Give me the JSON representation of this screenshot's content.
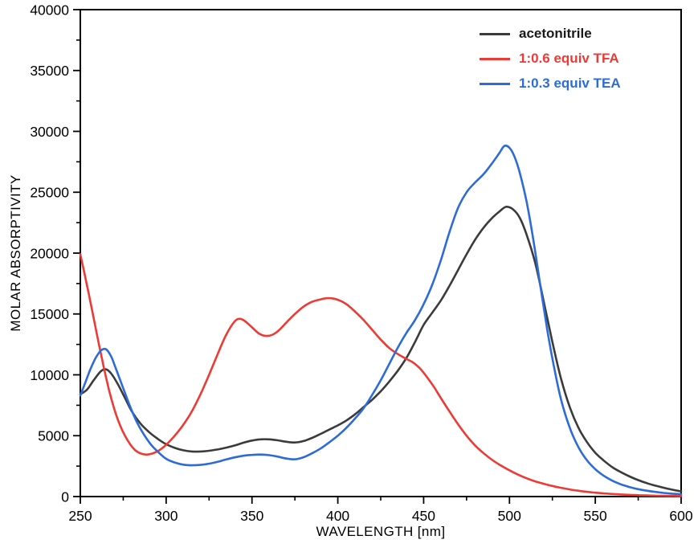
{
  "figure": {
    "background": "#ffffff",
    "frame_color": "#000000",
    "tick_color": "#000000",
    "text_color": "#000000"
  },
  "chart_data": {
    "type": "line",
    "title": "",
    "xlabel": "WAVELENGTH [nm]",
    "ylabel": "MOLAR ABSORPTIVITY",
    "xlim": [
      250,
      600
    ],
    "ylim": [
      0,
      40000
    ],
    "xticks": [
      250,
      300,
      350,
      400,
      450,
      500,
      550,
      600
    ],
    "yticks": [
      0,
      5000,
      10000,
      15000,
      20000,
      25000,
      30000,
      35000,
      40000
    ],
    "x_minor_step": 25,
    "y_minor_step": 2500,
    "grid": false,
    "legend_position": "top-right",
    "series": [
      {
        "name": "acetonitrile",
        "color": "#3b3b3b",
        "label_color": "#1a1a1a",
        "points": [
          [
            250,
            8400
          ],
          [
            254,
            8800
          ],
          [
            258,
            9600
          ],
          [
            262,
            10300
          ],
          [
            265,
            10450
          ],
          [
            268,
            10100
          ],
          [
            272,
            9200
          ],
          [
            276,
            8100
          ],
          [
            280,
            7000
          ],
          [
            285,
            6000
          ],
          [
            290,
            5300
          ],
          [
            295,
            4750
          ],
          [
            300,
            4300
          ],
          [
            305,
            4000
          ],
          [
            310,
            3800
          ],
          [
            315,
            3700
          ],
          [
            320,
            3700
          ],
          [
            325,
            3760
          ],
          [
            330,
            3870
          ],
          [
            335,
            4020
          ],
          [
            340,
            4200
          ],
          [
            345,
            4420
          ],
          [
            350,
            4600
          ],
          [
            355,
            4700
          ],
          [
            360,
            4700
          ],
          [
            365,
            4620
          ],
          [
            370,
            4500
          ],
          [
            375,
            4440
          ],
          [
            380,
            4560
          ],
          [
            385,
            4820
          ],
          [
            390,
            5150
          ],
          [
            395,
            5500
          ],
          [
            400,
            5850
          ],
          [
            405,
            6250
          ],
          [
            410,
            6750
          ],
          [
            415,
            7350
          ],
          [
            420,
            7950
          ],
          [
            425,
            8650
          ],
          [
            430,
            9450
          ],
          [
            435,
            10350
          ],
          [
            440,
            11400
          ],
          [
            445,
            12700
          ],
          [
            450,
            14100
          ],
          [
            455,
            15100
          ],
          [
            460,
            16100
          ],
          [
            465,
            17300
          ],
          [
            470,
            18600
          ],
          [
            475,
            19900
          ],
          [
            480,
            21100
          ],
          [
            485,
            22100
          ],
          [
            490,
            22900
          ],
          [
            494,
            23400
          ],
          [
            498,
            23800
          ],
          [
            502,
            23600
          ],
          [
            506,
            22900
          ],
          [
            510,
            21500
          ],
          [
            515,
            19200
          ],
          [
            520,
            16000
          ],
          [
            525,
            12700
          ],
          [
            530,
            9700
          ],
          [
            535,
            7400
          ],
          [
            540,
            5700
          ],
          [
            545,
            4500
          ],
          [
            550,
            3600
          ],
          [
            555,
            2950
          ],
          [
            560,
            2400
          ],
          [
            565,
            2000
          ],
          [
            570,
            1650
          ],
          [
            575,
            1350
          ],
          [
            580,
            1100
          ],
          [
            585,
            900
          ],
          [
            590,
            720
          ],
          [
            595,
            560
          ],
          [
            600,
            430
          ]
        ]
      },
      {
        "name": "1:0.6 equiv TFA",
        "color": "#ee3a34",
        "label_color": "#ee3a34",
        "points": [
          [
            250,
            19900
          ],
          [
            252,
            18600
          ],
          [
            255,
            16600
          ],
          [
            258,
            14500
          ],
          [
            261,
            12400
          ],
          [
            264,
            10400
          ],
          [
            267,
            8600
          ],
          [
            270,
            7100
          ],
          [
            273,
            5900
          ],
          [
            276,
            5000
          ],
          [
            279,
            4300
          ],
          [
            282,
            3800
          ],
          [
            285,
            3550
          ],
          [
            288,
            3450
          ],
          [
            291,
            3500
          ],
          [
            294,
            3650
          ],
          [
            297,
            3900
          ],
          [
            300,
            4250
          ],
          [
            305,
            5000
          ],
          [
            310,
            5900
          ],
          [
            315,
            7000
          ],
          [
            320,
            8400
          ],
          [
            325,
            10000
          ],
          [
            330,
            11700
          ],
          [
            335,
            13300
          ],
          [
            340,
            14400
          ],
          [
            343,
            14600
          ],
          [
            346,
            14400
          ],
          [
            350,
            13900
          ],
          [
            354,
            13400
          ],
          [
            358,
            13200
          ],
          [
            362,
            13300
          ],
          [
            366,
            13700
          ],
          [
            370,
            14300
          ],
          [
            375,
            15000
          ],
          [
            380,
            15600
          ],
          [
            385,
            16000
          ],
          [
            390,
            16200
          ],
          [
            394,
            16300
          ],
          [
            398,
            16250
          ],
          [
            402,
            16050
          ],
          [
            406,
            15700
          ],
          [
            410,
            15200
          ],
          [
            415,
            14500
          ],
          [
            420,
            13700
          ],
          [
            425,
            12900
          ],
          [
            430,
            12200
          ],
          [
            435,
            11700
          ],
          [
            440,
            11300
          ],
          [
            444,
            11000
          ],
          [
            448,
            10500
          ],
          [
            452,
            9800
          ],
          [
            456,
            9000
          ],
          [
            460,
            8100
          ],
          [
            465,
            7000
          ],
          [
            470,
            5950
          ],
          [
            475,
            5000
          ],
          [
            480,
            4200
          ],
          [
            485,
            3550
          ],
          [
            490,
            3000
          ],
          [
            495,
            2550
          ],
          [
            500,
            2150
          ],
          [
            505,
            1800
          ],
          [
            510,
            1500
          ],
          [
            515,
            1250
          ],
          [
            520,
            1050
          ],
          [
            525,
            870
          ],
          [
            530,
            720
          ],
          [
            535,
            590
          ],
          [
            540,
            480
          ],
          [
            545,
            390
          ],
          [
            550,
            320
          ],
          [
            555,
            260
          ],
          [
            560,
            210
          ],
          [
            565,
            170
          ],
          [
            570,
            140
          ],
          [
            575,
            110
          ],
          [
            580,
            90
          ],
          [
            585,
            75
          ],
          [
            590,
            60
          ],
          [
            595,
            50
          ],
          [
            600,
            40
          ]
        ]
      },
      {
        "name": "1:0.3 equiv TEA",
        "color": "#2d6bd8",
        "label_color": "#2d6bd8",
        "points": [
          [
            250,
            8300
          ],
          [
            253,
            9400
          ],
          [
            256,
            10500
          ],
          [
            259,
            11400
          ],
          [
            262,
            12000
          ],
          [
            265,
            12100
          ],
          [
            268,
            11500
          ],
          [
            271,
            10400
          ],
          [
            275,
            8900
          ],
          [
            279,
            7400
          ],
          [
            283,
            6100
          ],
          [
            287,
            5100
          ],
          [
            291,
            4300
          ],
          [
            295,
            3700
          ],
          [
            300,
            3100
          ],
          [
            305,
            2800
          ],
          [
            310,
            2620
          ],
          [
            315,
            2570
          ],
          [
            320,
            2600
          ],
          [
            325,
            2700
          ],
          [
            330,
            2850
          ],
          [
            335,
            3050
          ],
          [
            340,
            3220
          ],
          [
            345,
            3350
          ],
          [
            350,
            3420
          ],
          [
            355,
            3450
          ],
          [
            360,
            3400
          ],
          [
            365,
            3280
          ],
          [
            370,
            3120
          ],
          [
            375,
            3060
          ],
          [
            380,
            3230
          ],
          [
            385,
            3550
          ],
          [
            390,
            3950
          ],
          [
            395,
            4450
          ],
          [
            400,
            5000
          ],
          [
            405,
            5650
          ],
          [
            410,
            6400
          ],
          [
            415,
            7250
          ],
          [
            420,
            8350
          ],
          [
            425,
            9550
          ],
          [
            430,
            10900
          ],
          [
            435,
            12250
          ],
          [
            440,
            13450
          ],
          [
            445,
            14500
          ],
          [
            450,
            15800
          ],
          [
            455,
            17400
          ],
          [
            460,
            19400
          ],
          [
            465,
            21700
          ],
          [
            470,
            23700
          ],
          [
            475,
            25000
          ],
          [
            480,
            25800
          ],
          [
            485,
            26500
          ],
          [
            490,
            27400
          ],
          [
            494,
            28200
          ],
          [
            497,
            28800
          ],
          [
            500,
            28650
          ],
          [
            503,
            27900
          ],
          [
            506,
            26600
          ],
          [
            510,
            24200
          ],
          [
            514,
            21000
          ],
          [
            518,
            17300
          ],
          [
            522,
            13700
          ],
          [
            526,
            10600
          ],
          [
            530,
            8000
          ],
          [
            535,
            5700
          ],
          [
            540,
            4100
          ],
          [
            545,
            3000
          ],
          [
            550,
            2250
          ],
          [
            555,
            1700
          ],
          [
            560,
            1300
          ],
          [
            565,
            1000
          ],
          [
            570,
            780
          ],
          [
            575,
            610
          ],
          [
            580,
            480
          ],
          [
            585,
            380
          ],
          [
            590,
            300
          ],
          [
            595,
            240
          ],
          [
            600,
            190
          ]
        ]
      }
    ]
  }
}
